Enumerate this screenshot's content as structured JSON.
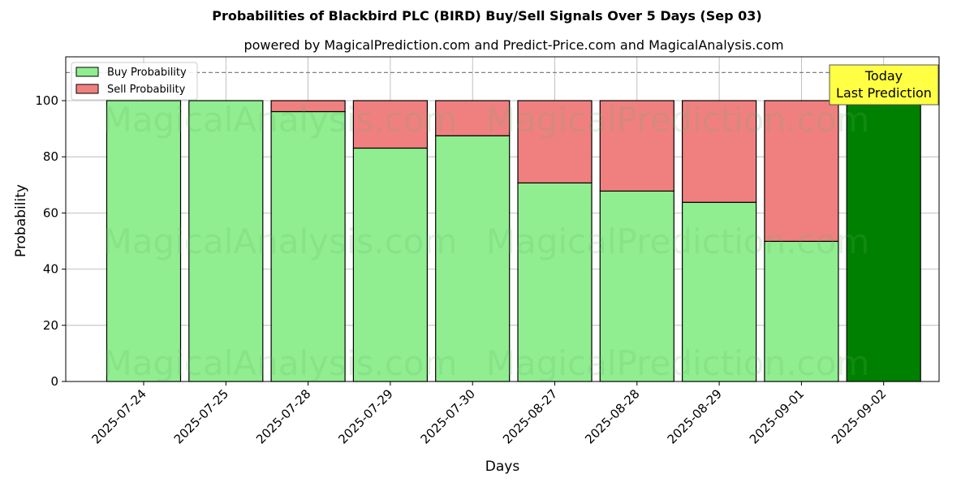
{
  "chart_data": {
    "type": "bar",
    "stacked": true,
    "title": "Probabilities of Blackbird PLC (BIRD) Buy/Sell Signals Over 5 Days (Sep 03)",
    "subtitle": "powered by MagicalPrediction.com and Predict-Price.com and MagicalAnalysis.com",
    "xlabel": "Days",
    "ylabel": "Probability",
    "ylim": [
      0,
      115
    ],
    "yticks": [
      0,
      20,
      40,
      60,
      80,
      100
    ],
    "grid": true,
    "legend_position": "upper left",
    "categories": [
      "2025-07-24",
      "2025-07-25",
      "2025-07-28",
      "2025-07-29",
      "2025-07-30",
      "2025-08-27",
      "2025-08-28",
      "2025-08-29",
      "2025-09-01",
      "2025-09-02"
    ],
    "series": [
      {
        "name": "Buy Probability",
        "color": "#90ee90",
        "values": [
          100,
          100,
          96.1,
          83.1,
          87.5,
          70.7,
          67.8,
          63.8,
          49.9,
          100
        ]
      },
      {
        "name": "Sell Probability",
        "color": "#f08080",
        "values": [
          0,
          0,
          3.9,
          16.9,
          12.5,
          29.3,
          32.2,
          36.2,
          50.1,
          0
        ]
      }
    ],
    "highlight": {
      "index": 9,
      "color": "#008000"
    },
    "reference_line": {
      "y": 110,
      "style": "dashed",
      "color": "#808080"
    },
    "annotation": {
      "line1": "Today",
      "line2": "Last Prediction",
      "bg": "#ffff44"
    },
    "watermarks": [
      "MagicalAnalysis.com",
      "MagicalPrediction.com"
    ]
  }
}
